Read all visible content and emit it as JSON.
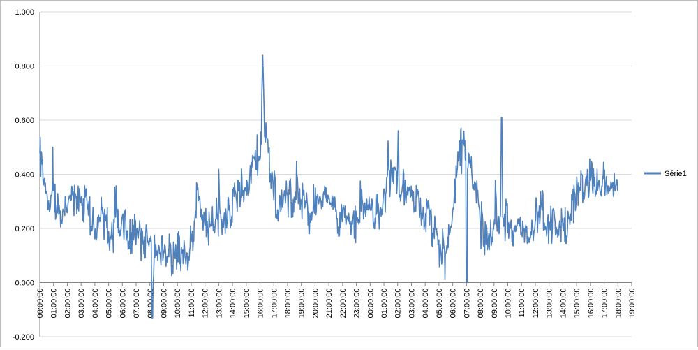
{
  "chart_data": {
    "type": "line",
    "title": "",
    "xlabel": "",
    "ylabel": "",
    "ylim": [
      -0.2,
      1.0
    ],
    "y_ticks": [
      "-0.200",
      "0.000",
      "0.200",
      "0.400",
      "0.600",
      "0.800",
      "1.000"
    ],
    "x_tick_labels": [
      "00:00:00",
      "01:00:00",
      "02:00:00",
      "03:00:00",
      "04:00:00",
      "05:00:00",
      "06:00:00",
      "07:00:00",
      "08:00:00",
      "09:00:00",
      "10:00:00",
      "11:00:00",
      "12:00:00",
      "13:00:00",
      "14:00:00",
      "15:00:00",
      "16:00:00",
      "17:00:00",
      "18:00:00",
      "19:00:00",
      "20:00:00",
      "21:00:00",
      "22:00:00",
      "23:00:00",
      "00:00:00",
      "01:00:00",
      "02:00:00",
      "03:00:00",
      "04:00:00",
      "05:00:00",
      "06:00:00",
      "07:00:00",
      "08:00:00",
      "09:00:00",
      "10:00:00",
      "11:00:00",
      "12:00:00",
      "13:00:00",
      "14:00:00",
      "15:00:00",
      "16:00:00",
      "17:00:00",
      "18:00:00",
      "19:00:00"
    ],
    "grid": "horizontal",
    "legend_position": "right",
    "series": [
      {
        "name": "Série1",
        "color": "#4f81bd",
        "x_hours": [
          0,
          0.5,
          1,
          1.5,
          2,
          2.5,
          3,
          3.5,
          4,
          4.5,
          5,
          5.5,
          6,
          6.5,
          7,
          7.5,
          8,
          8.5,
          9,
          9.5,
          10,
          10.5,
          11,
          11.5,
          12,
          12.5,
          13,
          13.5,
          14,
          14.5,
          15,
          15.5,
          16,
          16.5,
          17,
          17.5,
          18,
          18.5,
          19,
          19.5,
          20,
          20.5,
          21,
          21.5,
          22,
          22.5,
          23,
          23.5,
          24,
          24.5,
          25,
          25.5,
          26,
          26.5,
          27,
          27.5,
          28,
          28.5,
          29,
          29.5,
          30,
          30.5,
          31,
          31.5,
          32,
          32.5,
          33,
          33.5,
          34,
          34.5,
          35,
          35.5,
          36,
          36.5,
          37,
          37.5,
          38,
          38.5,
          39,
          39.5,
          40,
          40.5,
          41,
          41.5,
          42
        ],
        "values": [
          0.47,
          0.28,
          0.32,
          0.25,
          0.3,
          0.28,
          0.3,
          0.26,
          0.18,
          0.25,
          0.2,
          0.18,
          0.22,
          0.15,
          0.2,
          0.12,
          0.18,
          0.1,
          0.15,
          0.1,
          0.12,
          0.08,
          0.15,
          0.3,
          0.2,
          0.22,
          0.25,
          0.22,
          0.3,
          0.33,
          0.38,
          0.42,
          0.5,
          0.55,
          0.3,
          0.28,
          0.3,
          0.32,
          0.3,
          0.25,
          0.28,
          0.3,
          0.28,
          0.25,
          0.22,
          0.25,
          0.22,
          0.25,
          0.28,
          0.25,
          0.32,
          0.38,
          0.4,
          0.35,
          0.3,
          0.28,
          0.26,
          0.2,
          0.12,
          0.08,
          0.3,
          0.45,
          0.5,
          0.35,
          0.2,
          0.15,
          0.22,
          0.2,
          0.25,
          0.2,
          0.22,
          0.18,
          0.25,
          0.28,
          0.22,
          0.2,
          0.2,
          0.22,
          0.32,
          0.36,
          0.38,
          0.36,
          0.37,
          0.35,
          0.35
        ]
      }
    ]
  }
}
